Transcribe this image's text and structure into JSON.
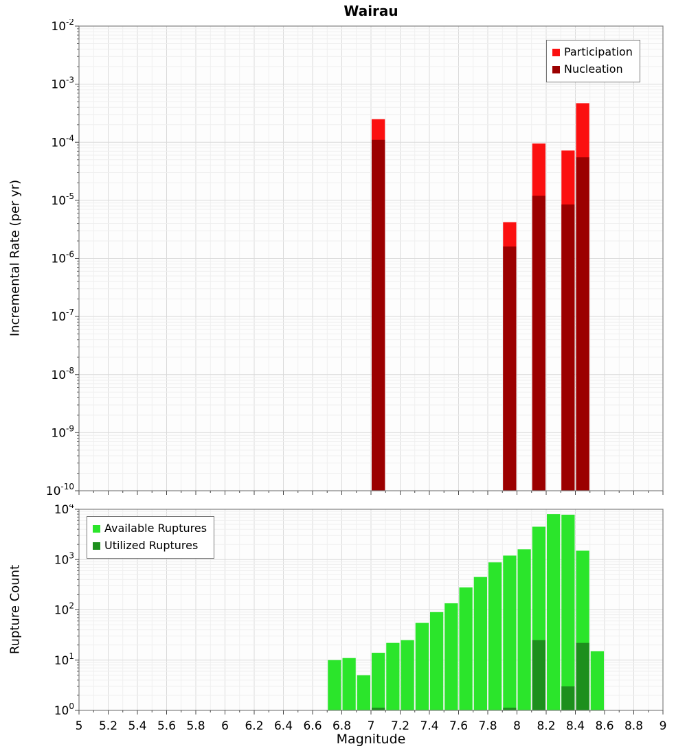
{
  "chart_data": [
    {
      "type": "bar",
      "title": "Wairau",
      "ylabel": "Incremental Rate (per yr)",
      "xlabel": "",
      "yscale": "log",
      "xlim": [
        5,
        9
      ],
      "ylim": [
        1e-10,
        0.01
      ],
      "y_tick_exponents": [
        -2,
        -3,
        -4,
        -5,
        -6,
        -7,
        -8,
        -9,
        -10
      ],
      "x_ticks": [
        "5",
        "5.2",
        "5.4",
        "5.6",
        "5.8",
        "6",
        "6.2",
        "6.4",
        "6.6",
        "6.8",
        "7",
        "7.2",
        "7.4",
        "7.6",
        "7.8",
        "8",
        "8.2",
        "8.4",
        "8.6",
        "8.8",
        "9"
      ],
      "bin_width": 0.1,
      "grid": true,
      "legend_position": "top-right",
      "series": [
        {
          "name": "Participation",
          "color": "#fb1010",
          "x": [
            7.05,
            7.95,
            8.15,
            8.35,
            8.45
          ],
          "values": [
            0.00025,
            4.2e-06,
            9.5e-05,
            7.2e-05,
            0.00047
          ]
        },
        {
          "name": "Nucleation",
          "color": "#9b0000",
          "x": [
            7.05,
            7.95,
            8.15,
            8.35,
            8.45
          ],
          "values": [
            0.00011,
            1.6e-06,
            1.2e-05,
            8.5e-06,
            5.5e-05
          ]
        }
      ]
    },
    {
      "type": "bar",
      "title": "",
      "ylabel": "Rupture Count",
      "xlabel": "Magnitude",
      "yscale": "log",
      "xlim": [
        5,
        9
      ],
      "ylim": [
        1,
        10000.0
      ],
      "y_tick_exponents": [
        0,
        1,
        2,
        3,
        4
      ],
      "x_ticks": [
        "5",
        "5.2",
        "5.4",
        "5.6",
        "5.8",
        "6",
        "6.2",
        "6.4",
        "6.6",
        "6.8",
        "7",
        "7.2",
        "7.4",
        "7.6",
        "7.8",
        "8",
        "8.2",
        "8.4",
        "8.6",
        "8.8",
        "9"
      ],
      "bin_width": 0.1,
      "grid": true,
      "legend_position": "top-left",
      "series": [
        {
          "name": "Available Ruptures",
          "color": "#2be52b",
          "x": [
            6.75,
            6.85,
            6.95,
            7.05,
            7.15,
            7.25,
            7.35,
            7.45,
            7.55,
            7.65,
            7.75,
            7.85,
            7.95,
            8.05,
            8.15,
            8.25,
            8.35,
            8.45,
            8.55
          ],
          "values": [
            10,
            11,
            5,
            14,
            22,
            25,
            55,
            90,
            135,
            280,
            450,
            880,
            1200,
            1600,
            4500,
            8000,
            7800,
            1500,
            15
          ]
        },
        {
          "name": "Utilized Ruptures",
          "color": "#1d8f1d",
          "x": [
            7.05,
            7.95,
            8.15,
            8.35,
            8.45
          ],
          "values": [
            1,
            1,
            25,
            3,
            22
          ]
        }
      ]
    }
  ]
}
